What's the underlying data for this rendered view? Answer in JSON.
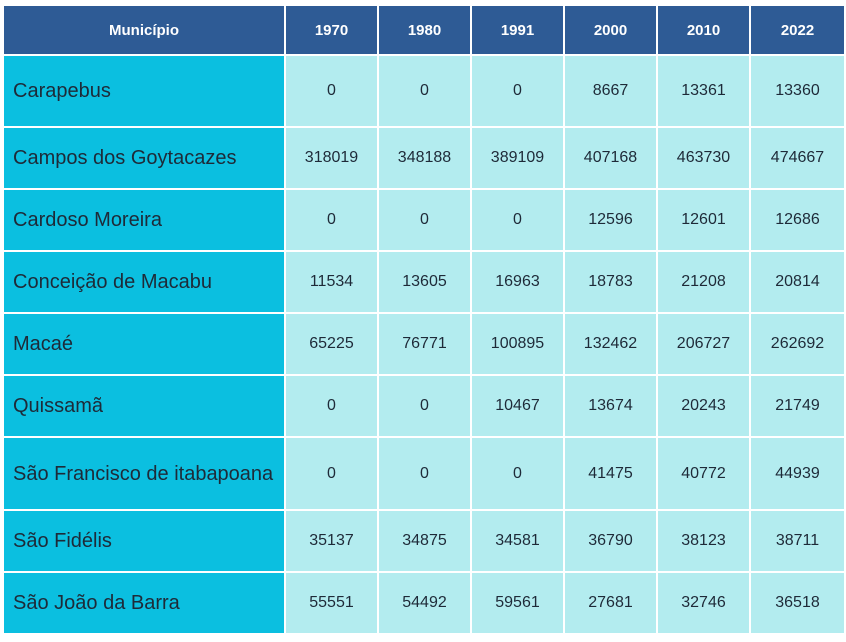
{
  "table": {
    "headers": [
      "Município",
      "1970",
      "1980",
      "1991",
      "2000",
      "2010",
      "2022"
    ],
    "rows": [
      {
        "municipio": "Carapebus",
        "values": [
          "0",
          "0",
          "0",
          "8667",
          "13361",
          "13360"
        ]
      },
      {
        "municipio": "Campos dos Goytacazes",
        "values": [
          "318019",
          "348188",
          "389109",
          "407168",
          "463730",
          "474667"
        ]
      },
      {
        "municipio": "Cardoso Moreira",
        "values": [
          "0",
          "0",
          "0",
          "12596",
          "12601",
          "12686"
        ]
      },
      {
        "municipio": "Conceição de Macabu",
        "values": [
          "11534",
          "13605",
          "16963",
          "18783",
          "21208",
          "20814"
        ]
      },
      {
        "municipio": "Macaé",
        "values": [
          "65225",
          "76771",
          "100895",
          "132462",
          "206727",
          "262692"
        ]
      },
      {
        "municipio": "Quissamã",
        "values": [
          "0",
          "0",
          "10467",
          "13674",
          "20243",
          "21749"
        ]
      },
      {
        "municipio": "São Francisco de itabapoana",
        "values": [
          "0",
          "0",
          "0",
          "41475",
          "40772",
          "44939"
        ]
      },
      {
        "municipio": "São Fidélis",
        "values": [
          "35137",
          "34875",
          "34581",
          "36790",
          "38123",
          "38711"
        ]
      },
      {
        "municipio": "São João da Barra",
        "values": [
          "55551",
          "54492",
          "59561",
          "27681",
          "32746",
          "36518"
        ]
      }
    ]
  },
  "colors": {
    "header_bg": "#2e5b95",
    "municipio_bg": "#0bbfe0",
    "value_bg": "#b3ecef"
  }
}
